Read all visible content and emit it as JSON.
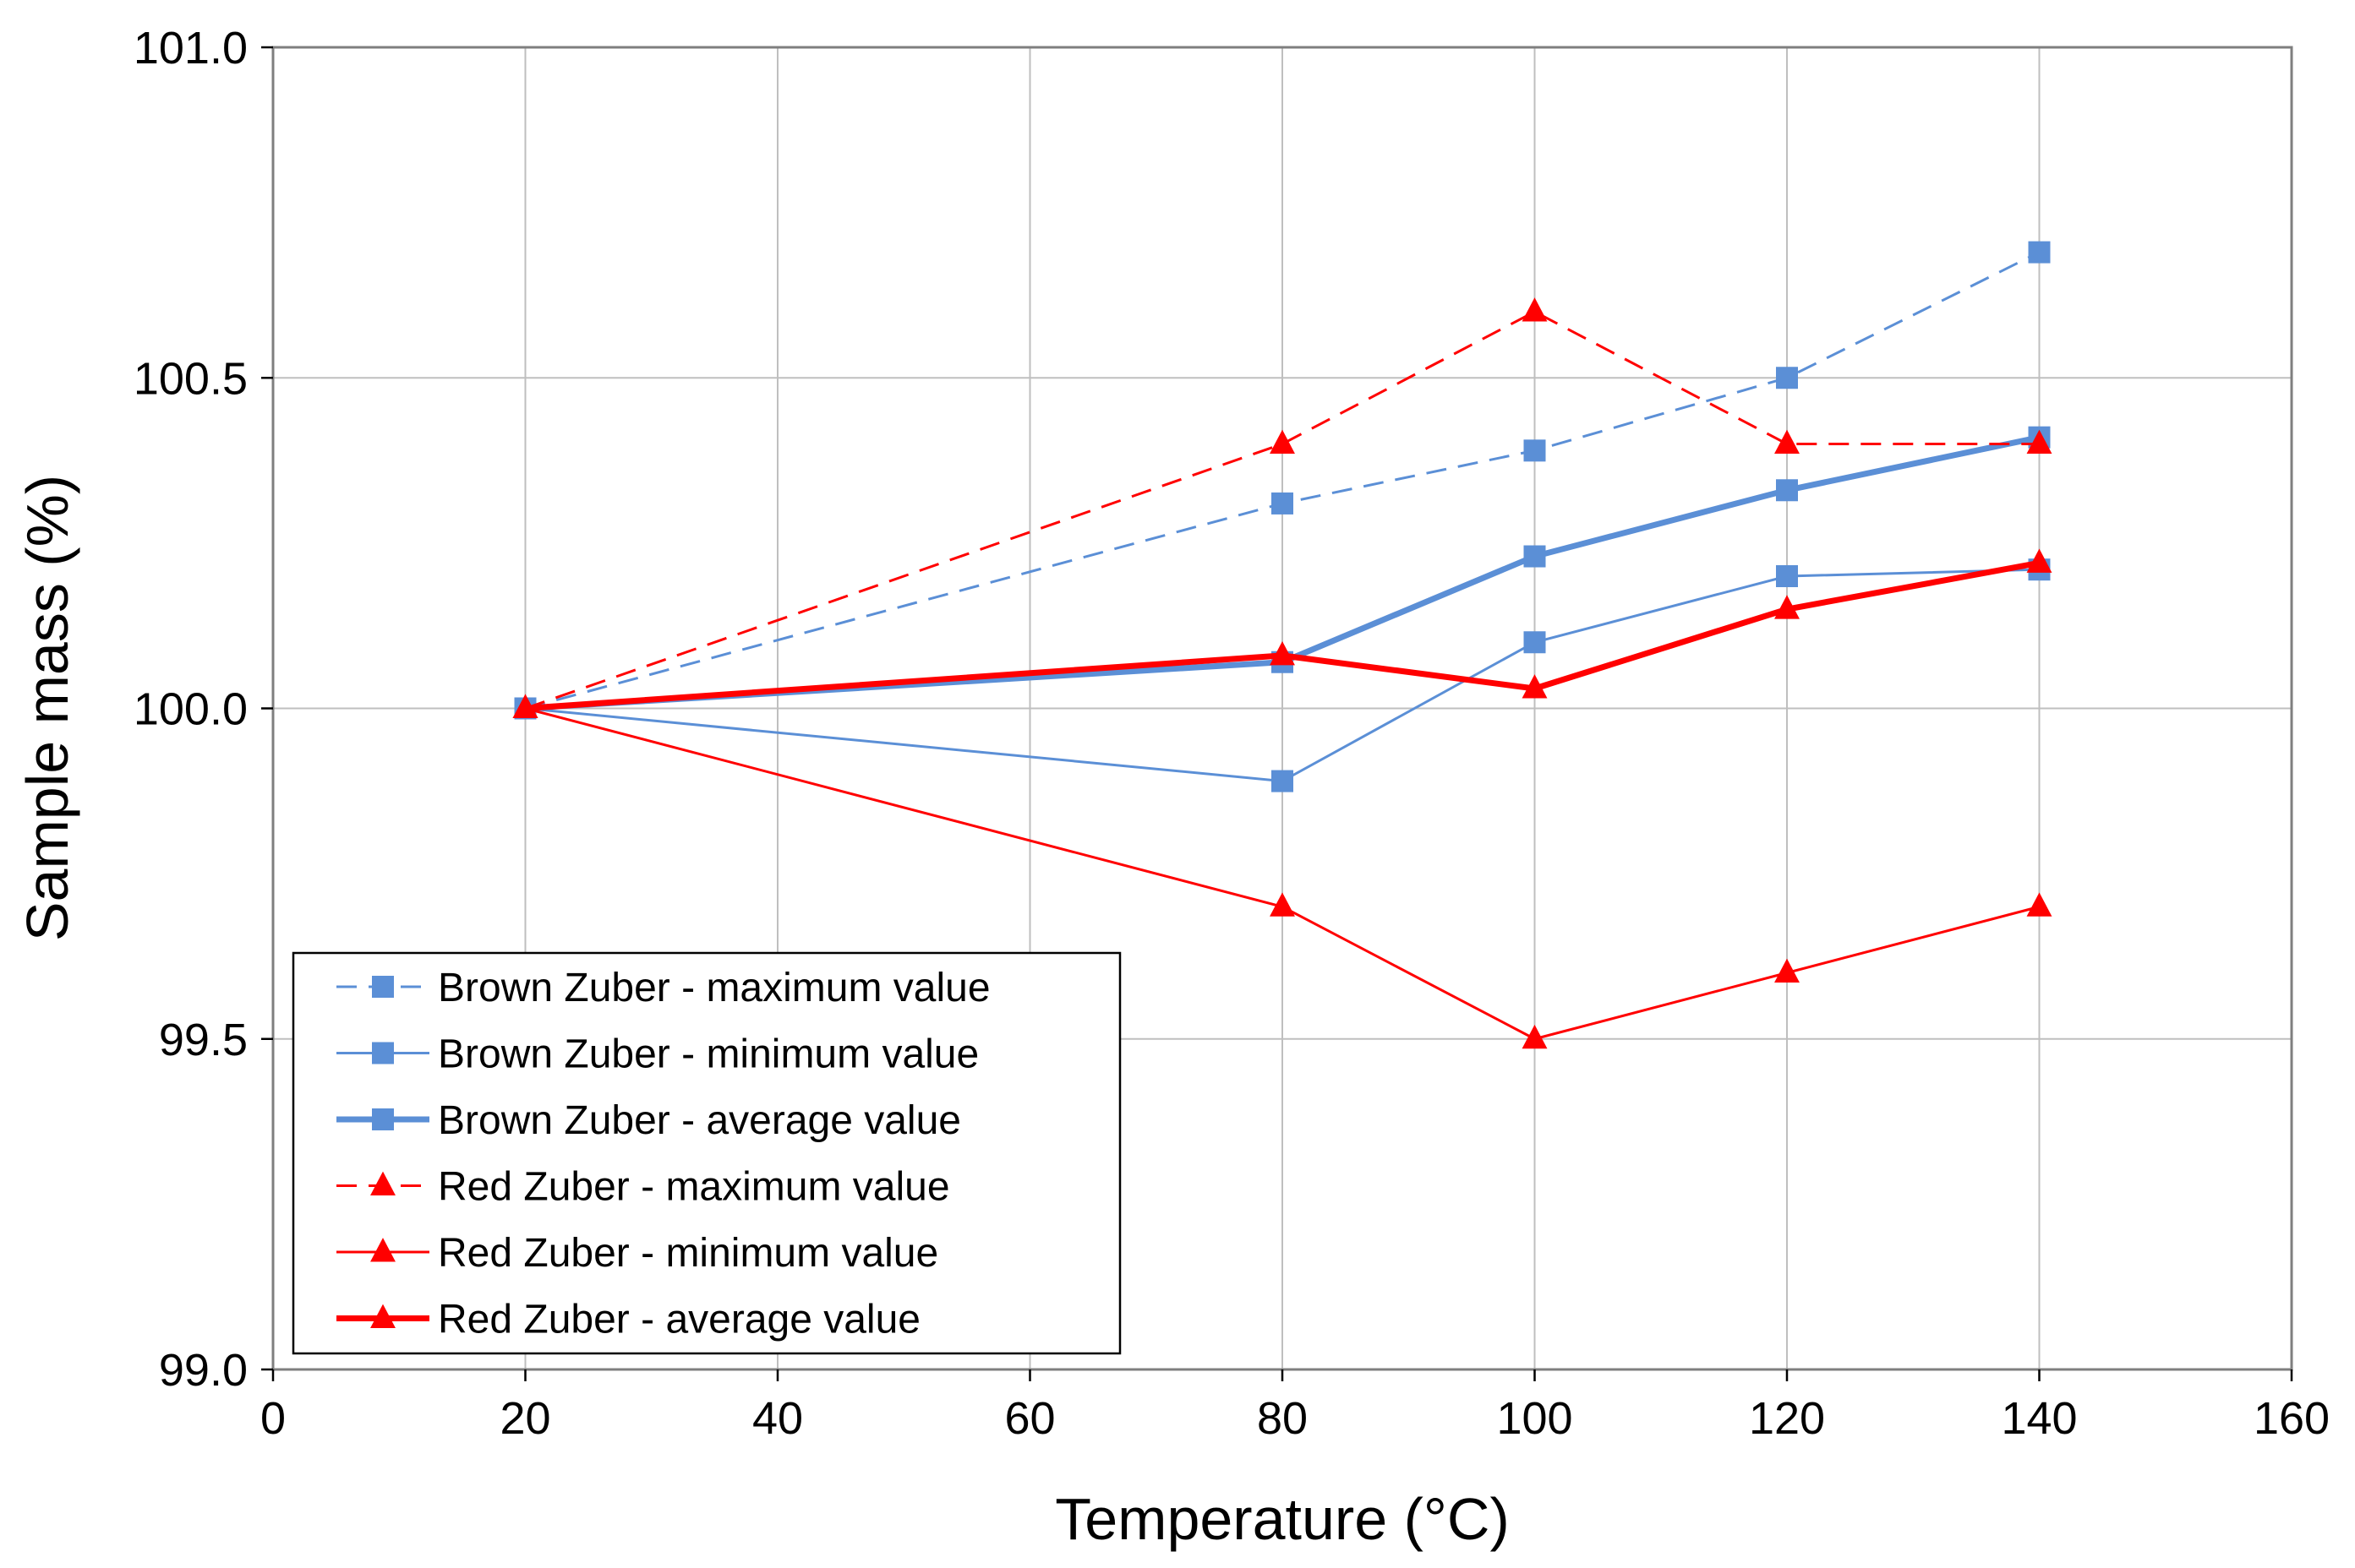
{
  "chart_data": {
    "type": "line",
    "title": "",
    "xlabel": "Temperature (°C)",
    "ylabel": "Sample mass (%)",
    "xlim": [
      0,
      160
    ],
    "ylim": [
      99.0,
      101.0
    ],
    "x_ticks": [
      "0",
      "20",
      "40",
      "60",
      "80",
      "100",
      "120",
      "140",
      "160"
    ],
    "y_ticks": [
      "99.0",
      "99.5",
      "100.0",
      "100.5",
      "101.0"
    ],
    "grid": true,
    "legend_position": "bottom-left",
    "series": [
      {
        "name": "Brown Zuber - maximum value",
        "color": "#5b8fd6",
        "marker": "square",
        "dash": "dashed",
        "weight": "thin",
        "x": [
          20,
          80,
          100,
          120,
          140
        ],
        "values": [
          100.0,
          100.31,
          100.39,
          100.5,
          100.69
        ]
      },
      {
        "name": "Brown Zuber - minimum value",
        "color": "#5b8fd6",
        "marker": "square",
        "dash": "solid",
        "weight": "thin",
        "x": [
          20,
          80,
          100,
          120,
          140
        ],
        "values": [
          100.0,
          99.89,
          100.1,
          100.2,
          100.21
        ]
      },
      {
        "name": "Brown Zuber - average value",
        "color": "#5b8fd6",
        "marker": "square",
        "dash": "solid",
        "weight": "thick",
        "x": [
          20,
          80,
          100,
          120,
          140
        ],
        "values": [
          100.0,
          100.07,
          100.23,
          100.33,
          100.41
        ]
      },
      {
        "name": "Red Zuber - maximum value",
        "color": "#ff0000",
        "marker": "triangle",
        "dash": "dashed",
        "weight": "thin",
        "x": [
          20,
          80,
          100,
          120,
          140
        ],
        "values": [
          100.0,
          100.4,
          100.6,
          100.4,
          100.4
        ]
      },
      {
        "name": "Red Zuber - minimum value",
        "color": "#ff0000",
        "marker": "triangle",
        "dash": "solid",
        "weight": "thin",
        "x": [
          20,
          80,
          100,
          120,
          140
        ],
        "values": [
          100.0,
          99.7,
          99.5,
          99.6,
          99.7
        ]
      },
      {
        "name": "Red Zuber - average value",
        "color": "#ff0000",
        "marker": "triangle",
        "dash": "solid",
        "weight": "thick",
        "x": [
          20,
          80,
          100,
          120,
          140
        ],
        "values": [
          100.0,
          100.08,
          100.03,
          100.15,
          100.22
        ]
      }
    ]
  }
}
